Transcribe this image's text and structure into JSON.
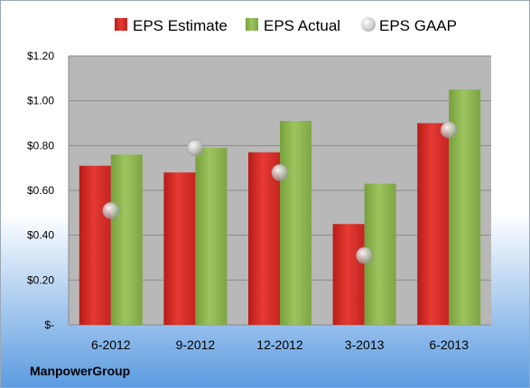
{
  "company": "ManpowerGroup",
  "colors": {
    "estimate": "#d42a25",
    "actual": "#88b04b",
    "gaap": "#b0b0b0",
    "plot_bg": "#b8b8b8",
    "bg_top": "#ffffff",
    "bg_bottom": "#5b9be0"
  },
  "chart_data": {
    "type": "bar",
    "title": "",
    "xlabel": "",
    "ylabel": "",
    "categories": [
      "6-2012",
      "9-2012",
      "12-2012",
      "3-2013",
      "6-2013"
    ],
    "series": [
      {
        "name": "EPS Estimate",
        "kind": "bar",
        "values": [
          0.71,
          0.68,
          0.77,
          0.45,
          0.9
        ]
      },
      {
        "name": "EPS Actual",
        "kind": "bar",
        "values": [
          0.76,
          0.79,
          0.91,
          0.63,
          1.05
        ]
      },
      {
        "name": "EPS GAAP",
        "kind": "scatter",
        "values": [
          0.51,
          0.79,
          0.68,
          0.31,
          0.87
        ]
      }
    ],
    "ylim": [
      0,
      1.2
    ],
    "yticks": [
      0,
      0.2,
      0.4,
      0.6,
      0.8,
      1.0,
      1.2
    ],
    "ytick_labels": [
      "$-",
      "$0.20",
      "$0.40",
      "$0.60",
      "$0.80",
      "$1.00",
      "$1.20"
    ],
    "grid": true,
    "legend_position": "top"
  }
}
